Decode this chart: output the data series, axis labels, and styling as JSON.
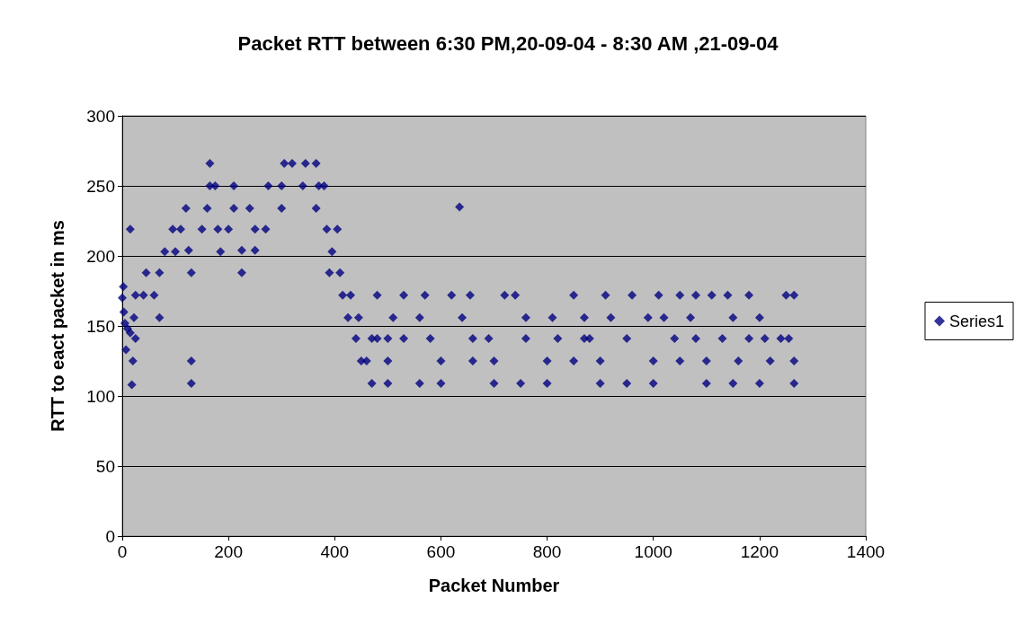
{
  "chart_data": {
    "type": "scatter",
    "title": "Packet RTT between 6:30 PM,20-09-04 - 8:30 AM ,21-09-04",
    "xlabel": "Packet Number",
    "ylabel": "RTT to eact packet in ms",
    "xlim": [
      0,
      1400
    ],
    "xticks": [
      0,
      200,
      400,
      600,
      800,
      1000,
      1200,
      1400
    ],
    "ylim": [
      0,
      300
    ],
    "yticks": [
      0,
      50,
      100,
      150,
      200,
      250,
      300
    ],
    "grid": "y",
    "legend": "right",
    "marker": "diamond",
    "series": [
      {
        "name": "Series1",
        "color": "#000080",
        "x": [
          0,
          2,
          3,
          5,
          7,
          10,
          15,
          15,
          18,
          20,
          25,
          22,
          25,
          40,
          60,
          70,
          45,
          70,
          80,
          100,
          95,
          120,
          130,
          130,
          130,
          110,
          125,
          150,
          160,
          165,
          165,
          175,
          185,
          180,
          200,
          210,
          210,
          225,
          225,
          250,
          250,
          240,
          270,
          275,
          300,
          300,
          305,
          320,
          340,
          345,
          365,
          370,
          365,
          380,
          385,
          395,
          390,
          405,
          410,
          415,
          430,
          425,
          440,
          445,
          460,
          470,
          470,
          480,
          500,
          500,
          500,
          510,
          530,
          560,
          570,
          580,
          600,
          600,
          620,
          635,
          640,
          655,
          660,
          700,
          700,
          720,
          740,
          760,
          760,
          800,
          800,
          810,
          820,
          850,
          870,
          880,
          900,
          900,
          910,
          920,
          950,
          960,
          990,
          1000,
          1000,
          1010,
          1020,
          1040,
          1050,
          1070,
          1080,
          1100,
          1100,
          1110,
          1130,
          1140,
          1150,
          1160,
          1180,
          1200,
          1200,
          1210,
          1220,
          1240,
          1250,
          1265,
          1265,
          1265,
          1255,
          560,
          660,
          750,
          850,
          950,
          1050,
          1150,
          450,
          480,
          530,
          690,
          870,
          1080,
          1180
        ],
        "values": [
          170,
          178,
          160,
          152,
          133,
          148,
          145,
          219,
          108,
          125,
          141,
          156,
          172,
          172,
          172,
          156,
          188,
          188,
          203,
          203,
          219,
          234,
          188,
          125,
          109,
          219,
          204,
          219,
          234,
          250,
          266,
          250,
          203,
          219,
          219,
          234,
          250,
          188,
          204,
          204,
          219,
          234,
          219,
          250,
          250,
          234,
          266,
          266,
          250,
          266,
          266,
          250,
          234,
          250,
          219,
          203,
          188,
          219,
          188,
          172,
          172,
          156,
          141,
          156,
          125,
          109,
          141,
          172,
          109,
          125,
          141,
          156,
          172,
          156,
          172,
          141,
          109,
          125,
          172,
          235,
          156,
          172,
          141,
          109,
          125,
          172,
          172,
          141,
          156,
          109,
          125,
          156,
          141,
          172,
          156,
          141,
          109,
          125,
          172,
          156,
          141,
          172,
          156,
          109,
          125,
          172,
          156,
          141,
          172,
          156,
          172,
          109,
          125,
          172,
          141,
          172,
          156,
          125,
          172,
          109,
          156,
          141,
          125,
          141,
          172,
          172,
          125,
          109,
          141,
          109,
          125,
          109,
          125,
          109,
          125,
          109,
          125,
          141,
          141,
          141,
          141,
          141,
          141
        ]
      }
    ]
  }
}
